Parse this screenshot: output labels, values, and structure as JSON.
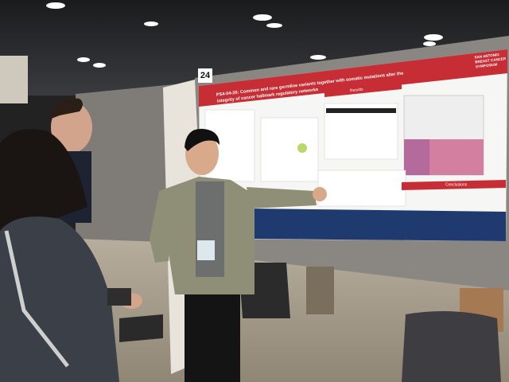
{
  "booth_number": "24",
  "poster": {
    "title_lines": [
      "PS4-04-26: Common and rare germline variants together with somatic mutations alter the",
      "integrity of cancer hallmark regulatory networks"
    ],
    "symposium_lines": [
      "SAN ANTONIO",
      "BREAST CANCER",
      "SYMPOSIUM"
    ],
    "sections": [
      "Results",
      "Conclusions"
    ]
  }
}
